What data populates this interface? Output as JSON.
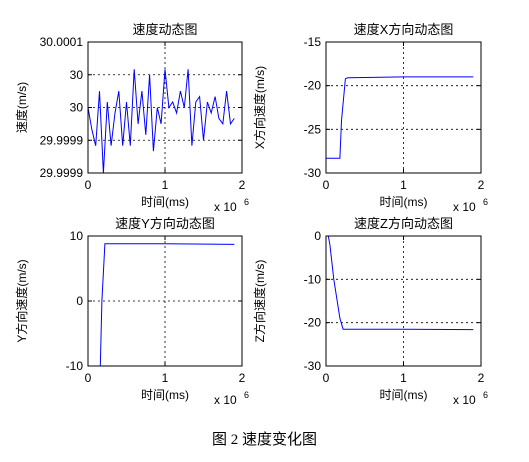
{
  "caption": "图 2  速度变化图",
  "chart_data": [
    {
      "type": "line",
      "title": "速度动态图",
      "xlabel": "时间(ms)",
      "ylabel": "速度(m/s)",
      "x_multiplier": "x 10",
      "x_exponent": "6",
      "xlim": [
        0,
        2
      ],
      "ylim": [
        29.99988,
        30.00012
      ],
      "x_ticks": [
        0,
        1,
        2
      ],
      "y_ticks": [
        29.99988,
        29.99994,
        30,
        30.00006,
        30.00012
      ],
      "x_tick_labels": [
        "0",
        "1",
        "2"
      ],
      "y_tick_labels": [
        "29.9999",
        "29.9999",
        "30",
        "30",
        "30.0001"
      ],
      "grid": true,
      "line_color": "#0000ff",
      "series": [
        {
          "x": [
            0.0,
            0.05,
            0.1,
            0.15,
            0.2,
            0.25,
            0.3,
            0.35,
            0.4,
            0.45,
            0.5,
            0.55,
            0.6,
            0.65,
            0.7,
            0.75,
            0.8,
            0.85,
            0.9,
            0.95,
            1.0,
            1.05,
            1.1,
            1.15,
            1.2,
            1.25,
            1.3,
            1.35,
            1.4,
            1.45,
            1.5,
            1.55,
            1.6,
            1.65,
            1.7,
            1.75,
            1.8,
            1.85,
            1.9
          ],
          "y": [
            30.0,
            29.99996,
            29.99993,
            30.00003,
            29.99988,
            30.00001,
            29.99993,
            29.99999,
            30.00003,
            29.99993,
            30.00001,
            29.99993,
            30.00007,
            29.99997,
            30.00003,
            29.99995,
            30.00006,
            29.99992,
            30.0,
            29.99997,
            30.00007,
            30.0,
            30.00001,
            29.99999,
            30.00003,
            30.0,
            30.00007,
            29.99993,
            30.00001,
            30.00002,
            29.99994,
            30.00001,
            29.99999,
            30.00002,
            29.99998,
            29.99997,
            30.00003,
            29.99997,
            29.99998
          ]
        }
      ]
    },
    {
      "type": "line",
      "title": "速度X方向动态图",
      "xlabel": "时间(ms)",
      "ylabel": "X方向速度(m/s)",
      "x_multiplier": "x 10",
      "x_exponent": "6",
      "xlim": [
        0,
        2
      ],
      "ylim": [
        -30,
        -15
      ],
      "x_ticks": [
        0,
        1,
        2
      ],
      "y_ticks": [
        -30,
        -25,
        -20,
        -15
      ],
      "x_tick_labels": [
        "0",
        "1",
        "2"
      ],
      "y_tick_labels": [
        "-30",
        "-25",
        "-20",
        "-15"
      ],
      "grid": true,
      "line_color": "#0000ff",
      "series": [
        {
          "x": [
            0,
            0.18,
            0.2,
            0.25,
            0.28,
            1.0,
            1.9
          ],
          "y": [
            -28.3,
            -28.3,
            -24.0,
            -19.2,
            -19.1,
            -19.0,
            -19.0
          ]
        }
      ]
    },
    {
      "type": "line",
      "title": "速度Y方向动态图",
      "xlabel": "时间(ms)",
      "ylabel": "Y方向速度(m/s)",
      "x_multiplier": "x 10",
      "x_exponent": "6",
      "xlim": [
        0,
        2
      ],
      "ylim": [
        -10,
        10
      ],
      "x_ticks": [
        0,
        1,
        2
      ],
      "y_ticks": [
        -10,
        0,
        10
      ],
      "x_tick_labels": [
        "0",
        "1",
        "2"
      ],
      "y_tick_labels": [
        "-10",
        "0",
        "10"
      ],
      "grid": true,
      "line_color": "#0000ff",
      "series": [
        {
          "x": [
            0,
            0.16,
            0.18,
            0.22,
            1.0,
            1.9
          ],
          "y": [
            -10,
            -10,
            0,
            8.8,
            8.8,
            8.7
          ]
        }
      ]
    },
    {
      "type": "line",
      "title": "速度Z方向动态图",
      "xlabel": "时间(ms)",
      "ylabel": "Z方向速度(m/s)",
      "x_multiplier": "x 10",
      "x_exponent": "6",
      "xlim": [
        0,
        2
      ],
      "ylim": [
        -30,
        0
      ],
      "x_ticks": [
        0,
        1,
        2
      ],
      "y_ticks": [
        -30,
        -20,
        -10,
        0
      ],
      "x_tick_labels": [
        "0",
        "1",
        "2"
      ],
      "y_tick_labels": [
        "-30",
        "-20",
        "-10",
        "0"
      ],
      "grid": true,
      "line_color": "#0000ff",
      "series": [
        {
          "x": [
            0.03,
            0.05,
            0.1,
            0.18,
            0.22,
            1.0,
            1.9
          ],
          "y": [
            0,
            -2,
            -10,
            -19,
            -21.5,
            -21.5,
            -21.6
          ]
        }
      ]
    }
  ]
}
